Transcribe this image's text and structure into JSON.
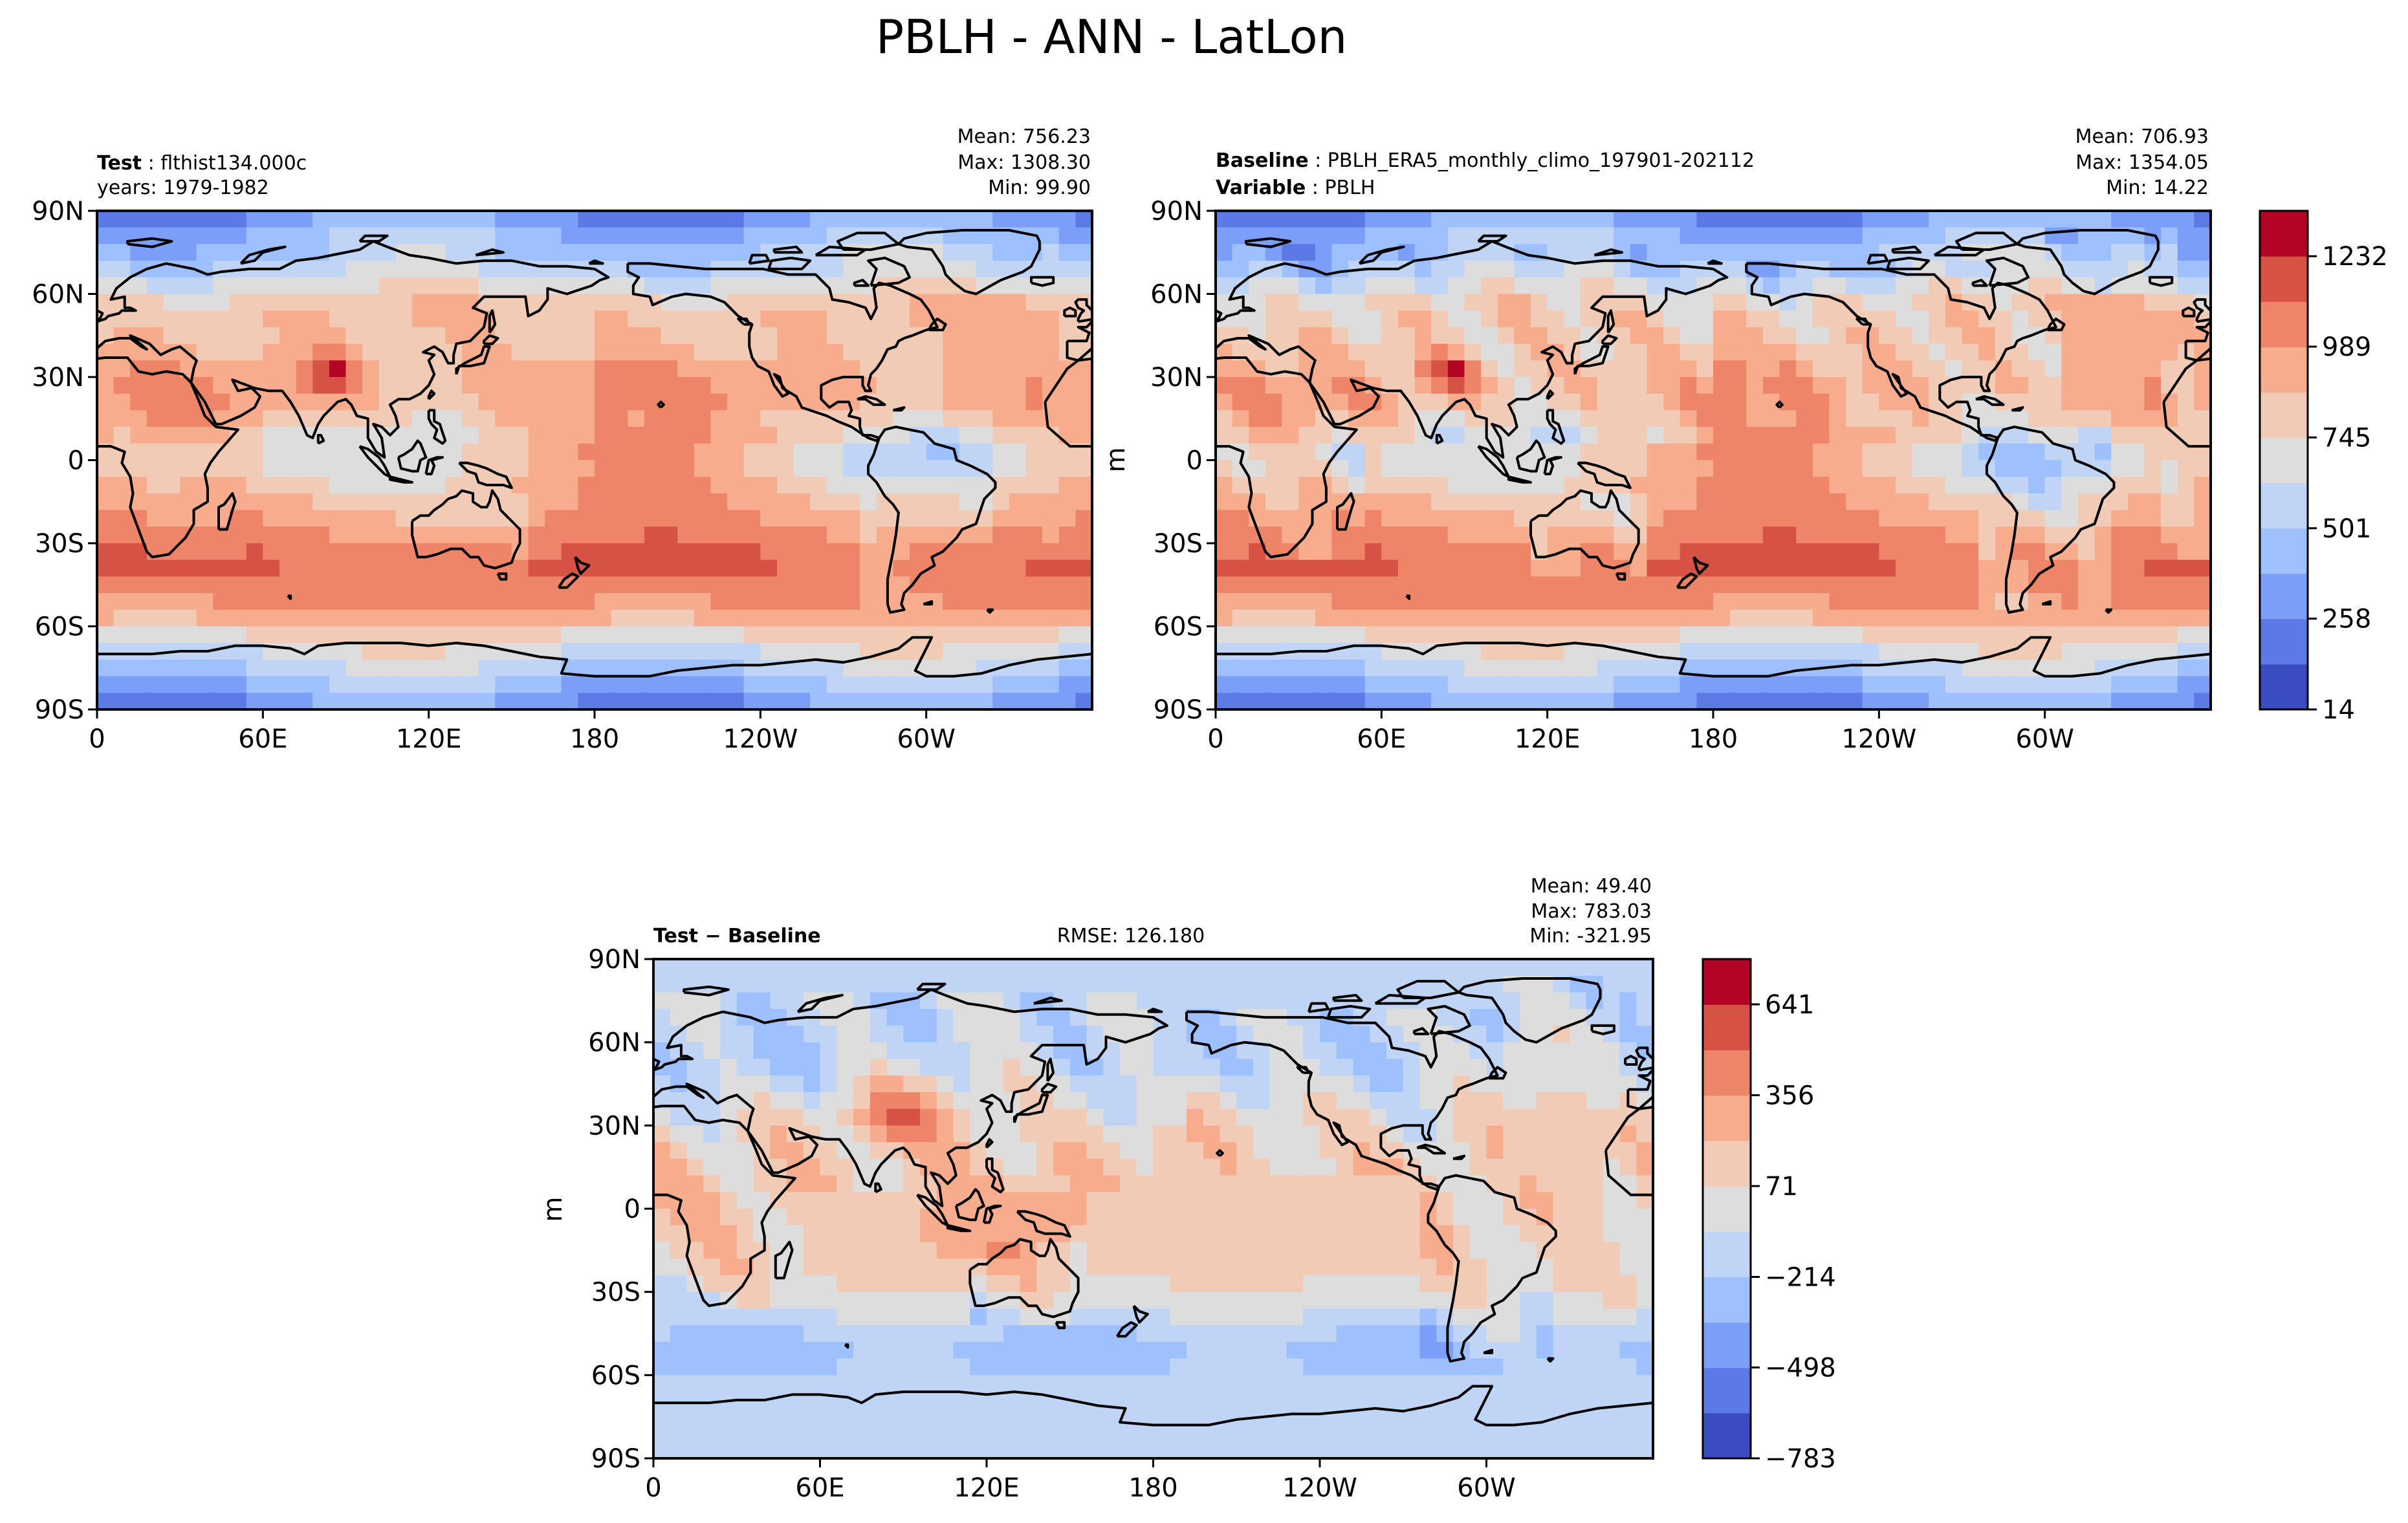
{
  "suptitle": "PBLH - ANN - LatLon",
  "panels": [
    {
      "id": "test",
      "left_label_bold": "Test",
      "left_label_value": "flthist134.000c",
      "left_line2_bold": "",
      "left_line2_value": "years: 1979-1982",
      "center_text": "",
      "stats": [
        "Mean: 756.23",
        "Max: 1308.30",
        "Min: 99.90"
      ],
      "ylabel": ""
    },
    {
      "id": "baseline",
      "left_label_bold": "Baseline",
      "left_label_value": "PBLH_ERA5_monthly_climo_197901-202112",
      "left_line2_bold": "Variable",
      "left_line2_value": "PBLH",
      "center_text": "",
      "stats": [
        "Mean: 706.93",
        "Max: 1354.05",
        "Min: 14.22"
      ],
      "ylabel": "m"
    },
    {
      "id": "diff",
      "left_label_bold": "Test − Baseline",
      "left_label_value": "",
      "left_line2_bold": "",
      "left_line2_value": "",
      "center_text": "RMSE: 126.180",
      "stats": [
        "Mean: 49.40",
        "Max: 783.03",
        "Min: -321.95"
      ],
      "ylabel": "m"
    }
  ],
  "chart_data": {
    "type": "heatmap",
    "projection": "PlateCarree",
    "x_ticks": [
      "0",
      "60E",
      "120E",
      "180",
      "120W",
      "60W"
    ],
    "x_tick_values": [
      0,
      60,
      120,
      180,
      240,
      300
    ],
    "xlim": [
      0,
      360
    ],
    "y_ticks": [
      "90N",
      "60N",
      "30N",
      "0",
      "30S",
      "60S",
      "90S"
    ],
    "y_tick_values": [
      90,
      60,
      30,
      0,
      -30,
      -60,
      -90
    ],
    "ylim": [
      -90,
      90
    ],
    "colorbar_main": {
      "ticks": [
        "14",
        "258",
        "501",
        "745",
        "989",
        "1232"
      ],
      "tick_values": [
        14,
        258,
        501,
        745,
        989,
        1232
      ],
      "range": [
        14,
        1354
      ],
      "n_levels": 11
    },
    "colorbar_diff": {
      "ticks": [
        "−783",
        "−498",
        "−214",
        "71",
        "356",
        "641"
      ],
      "tick_values": [
        -783,
        -498,
        -214,
        71,
        356,
        641
      ],
      "range": [
        -783,
        783
      ],
      "n_levels": 11
    },
    "palette": [
      "#3b4cc0",
      "#5b7ae5",
      "#7b9ff9",
      "#9fc0ff",
      "#c0d4f5",
      "#dddddd",
      "#f2cbb7",
      "#f7ac8e",
      "#ee8468",
      "#d65244",
      "#b40426"
    ]
  }
}
